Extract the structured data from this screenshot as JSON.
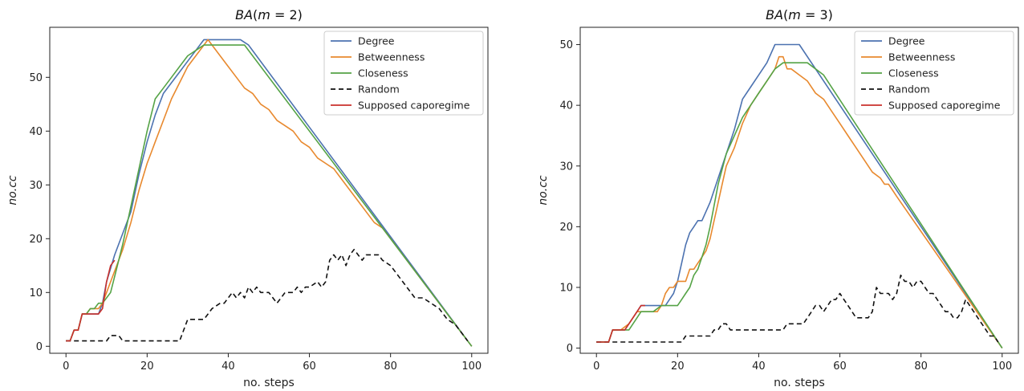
{
  "chart_data": [
    {
      "type": "line",
      "title": "BA(m = 2)",
      "title_parts": {
        "fn": "BA",
        "open": "(",
        "var": "m",
        "rest": " = 2)"
      },
      "xlabel": "no. steps",
      "ylabel": "no.cc",
      "xlim": [
        -4,
        104
      ],
      "ylim": [
        -1.3,
        59.3
      ],
      "xticks": [
        0,
        20,
        40,
        60,
        80,
        100
      ],
      "yticks": [
        0,
        10,
        20,
        30,
        40,
        50
      ],
      "grid": false,
      "legend_position": "top-right",
      "series": [
        {
          "name": "Degree",
          "color": "#4c72b0",
          "dash": "none",
          "x": [
            0,
            1,
            2,
            3,
            4,
            5,
            6,
            7,
            8,
            9,
            10,
            12,
            14,
            16,
            18,
            20,
            22,
            24,
            26,
            28,
            30,
            32,
            34,
            43,
            45,
            100
          ],
          "y": [
            1,
            1,
            3,
            3,
            6,
            6,
            6,
            6,
            6,
            8,
            12,
            17,
            21,
            25,
            32,
            38,
            43,
            47,
            49,
            51,
            53,
            55,
            57,
            57,
            56,
            0
          ]
        },
        {
          "name": "Betweenness",
          "color": "#e8892e",
          "dash": "none",
          "x": [
            0,
            1,
            2,
            3,
            4,
            5,
            6,
            7,
            8,
            9,
            10,
            12,
            14,
            16,
            18,
            20,
            21,
            22,
            24,
            26,
            28,
            30,
            32,
            34,
            35,
            36,
            38,
            40,
            42,
            44,
            46,
            48,
            50,
            52,
            54,
            56,
            58,
            60,
            62,
            64,
            66,
            68,
            70,
            72,
            74,
            76,
            78,
            100
          ],
          "y": [
            1,
            1,
            3,
            3,
            6,
            6,
            7,
            7,
            7,
            8,
            10,
            14,
            18,
            23,
            29,
            34,
            36,
            38,
            42,
            46,
            49,
            52,
            54,
            56,
            57,
            56,
            54,
            52,
            50,
            48,
            47,
            45,
            44,
            42,
            41,
            40,
            38,
            37,
            35,
            34,
            33,
            31,
            29,
            27,
            25,
            23,
            22,
            0
          ]
        },
        {
          "name": "Closeness",
          "color": "#55a346",
          "dash": "none",
          "x": [
            0,
            1,
            2,
            3,
            4,
            5,
            6,
            7,
            8,
            9,
            10,
            11,
            12,
            14,
            16,
            18,
            20,
            22,
            24,
            26,
            28,
            30,
            32,
            34,
            44,
            100
          ],
          "y": [
            1,
            1,
            3,
            3,
            6,
            6,
            7,
            7,
            8,
            8,
            9,
            10,
            13,
            19,
            26,
            33,
            40,
            46,
            48,
            50,
            52,
            54,
            55,
            56,
            56,
            0
          ]
        },
        {
          "name": "Random",
          "color": "#111111",
          "dash": "6,4",
          "x": [
            0,
            1,
            10,
            11,
            13,
            14,
            15,
            26,
            27,
            28,
            30,
            32,
            34,
            35,
            36,
            38,
            39,
            40,
            41,
            42,
            43,
            44,
            45,
            46,
            47,
            48,
            50,
            52,
            53,
            54,
            55,
            56,
            57,
            58,
            59,
            60,
            62,
            63,
            64,
            65,
            66,
            67,
            68,
            69,
            70,
            71,
            72,
            73,
            74,
            75,
            76,
            77,
            78,
            80,
            82,
            84,
            86,
            88,
            90,
            92,
            94,
            96,
            98,
            99
          ],
          "y": [
            1,
            1,
            1,
            2,
            2,
            1,
            1,
            1,
            1,
            1,
            5,
            5,
            5,
            6,
            7,
            8,
            8,
            9,
            10,
            9,
            10,
            9,
            11,
            10,
            11,
            10,
            10,
            8,
            9,
            10,
            10,
            10,
            11,
            10,
            11,
            11,
            12,
            11,
            12,
            16,
            17,
            16,
            17,
            15,
            17,
            18,
            17,
            16,
            17,
            17,
            17,
            17,
            16,
            15,
            13,
            11,
            9,
            9,
            8,
            7,
            5,
            4,
            2,
            1
          ]
        },
        {
          "name": "Supposed caporegime",
          "color": "#c9302c",
          "dash": "none",
          "x": [
            0,
            1,
            2,
            3,
            4,
            5,
            6,
            7,
            8,
            9,
            10,
            11,
            12
          ],
          "y": [
            1,
            1,
            3,
            3,
            6,
            6,
            6,
            6,
            6,
            7,
            12,
            15,
            16
          ]
        }
      ]
    },
    {
      "type": "line",
      "title": "BA(m = 3)",
      "title_parts": {
        "fn": "BA",
        "open": "(",
        "var": "m",
        "rest": " = 3)"
      },
      "xlabel": "no. steps",
      "ylabel": "no.cc",
      "xlim": [
        -4,
        104
      ],
      "ylim": [
        -0.85,
        52.85
      ],
      "xticks": [
        0,
        20,
        40,
        60,
        80,
        100
      ],
      "yticks": [
        0,
        10,
        20,
        30,
        40,
        50
      ],
      "grid": false,
      "legend_position": "top-right",
      "series": [
        {
          "name": "Degree",
          "color": "#4c72b0",
          "dash": "none",
          "x": [
            0,
            2,
            3,
            4,
            5,
            6,
            7,
            9,
            11,
            13,
            15,
            16,
            17,
            18,
            19,
            20,
            21,
            22,
            23,
            24,
            25,
            26,
            28,
            30,
            32,
            34,
            36,
            38,
            40,
            42,
            44,
            50,
            100
          ],
          "y": [
            1,
            1,
            1,
            3,
            3,
            3,
            3,
            5,
            7,
            7,
            7,
            7,
            7,
            8,
            9,
            11,
            14,
            17,
            19,
            20,
            21,
            21,
            24,
            28,
            32,
            36,
            41,
            43,
            45,
            47,
            50,
            50,
            0
          ]
        },
        {
          "name": "Betweenness",
          "color": "#e8892e",
          "dash": "none",
          "x": [
            0,
            2,
            3,
            4,
            6,
            8,
            10,
            12,
            14,
            15,
            16,
            17,
            18,
            19,
            20,
            21,
            22,
            23,
            24,
            25,
            26,
            27,
            28,
            30,
            31,
            32,
            34,
            36,
            38,
            40,
            42,
            44,
            45,
            46,
            47,
            48,
            50,
            52,
            54,
            56,
            58,
            60,
            62,
            64,
            66,
            68,
            70,
            71,
            72,
            73,
            74,
            100
          ],
          "y": [
            1,
            1,
            1,
            3,
            3,
            4,
            6,
            6,
            6,
            6,
            7,
            9,
            10,
            10,
            11,
            11,
            11,
            13,
            13,
            14,
            15,
            16,
            18,
            24,
            27,
            30,
            33,
            37,
            40,
            42,
            44,
            46,
            48,
            48,
            46,
            46,
            45,
            44,
            42,
            41,
            39,
            37,
            35,
            33,
            31,
            29,
            28,
            27,
            27,
            26,
            25,
            0
          ]
        },
        {
          "name": "Closeness",
          "color": "#55a346",
          "dash": "none",
          "x": [
            0,
            2,
            3,
            4,
            6,
            8,
            10,
            11,
            12,
            14,
            16,
            18,
            19,
            20,
            21,
            22,
            23,
            24,
            25,
            26,
            27,
            28,
            30,
            32,
            34,
            36,
            38,
            40,
            42,
            44,
            46,
            48,
            50,
            52,
            54,
            56,
            100
          ],
          "y": [
            1,
            1,
            1,
            3,
            3,
            3,
            5,
            6,
            6,
            6,
            7,
            7,
            7,
            7,
            8,
            9,
            10,
            12,
            13,
            15,
            17,
            20,
            27,
            32,
            35,
            38,
            40,
            42,
            44,
            46,
            47,
            47,
            47,
            47,
            46,
            45,
            0
          ]
        },
        {
          "name": "Random",
          "color": "#111111",
          "dash": "6,4",
          "x": [
            0,
            1,
            3,
            4,
            21,
            22,
            23,
            28,
            29,
            30,
            31,
            32,
            33,
            34,
            35,
            44,
            45,
            46,
            47,
            48,
            49,
            50,
            51,
            52,
            53,
            54,
            55,
            56,
            57,
            58,
            59,
            60,
            61,
            62,
            63,
            64,
            65,
            66,
            67,
            68,
            69,
            70,
            71,
            72,
            73,
            74,
            75,
            76,
            77,
            78,
            79,
            80,
            81,
            82,
            83,
            84,
            85,
            86,
            87,
            88,
            89,
            90,
            91,
            92,
            93,
            94,
            95,
            96,
            97,
            98,
            99
          ],
          "y": [
            1,
            1,
            1,
            1,
            1,
            2,
            2,
            2,
            3,
            3,
            4,
            4,
            3,
            3,
            3,
            3,
            3,
            3,
            4,
            4,
            4,
            4,
            4,
            5,
            6,
            7,
            7,
            6,
            7,
            8,
            8,
            9,
            8,
            7,
            6,
            5,
            5,
            5,
            5,
            6,
            10,
            9,
            9,
            9,
            8,
            9,
            12,
            11,
            11,
            10,
            11,
            11,
            10,
            9,
            9,
            8,
            7,
            6,
            6,
            5,
            5,
            6,
            8,
            7,
            6,
            5,
            4,
            3,
            2,
            2,
            1
          ]
        },
        {
          "name": "Supposed caporegime",
          "color": "#c9302c",
          "dash": "none",
          "x": [
            0,
            2,
            3,
            4,
            5,
            6,
            7,
            8,
            9,
            10,
            11,
            12
          ],
          "y": [
            1,
            1,
            1,
            3,
            3,
            3,
            3,
            4,
            5,
            6,
            7,
            7
          ]
        }
      ]
    }
  ]
}
